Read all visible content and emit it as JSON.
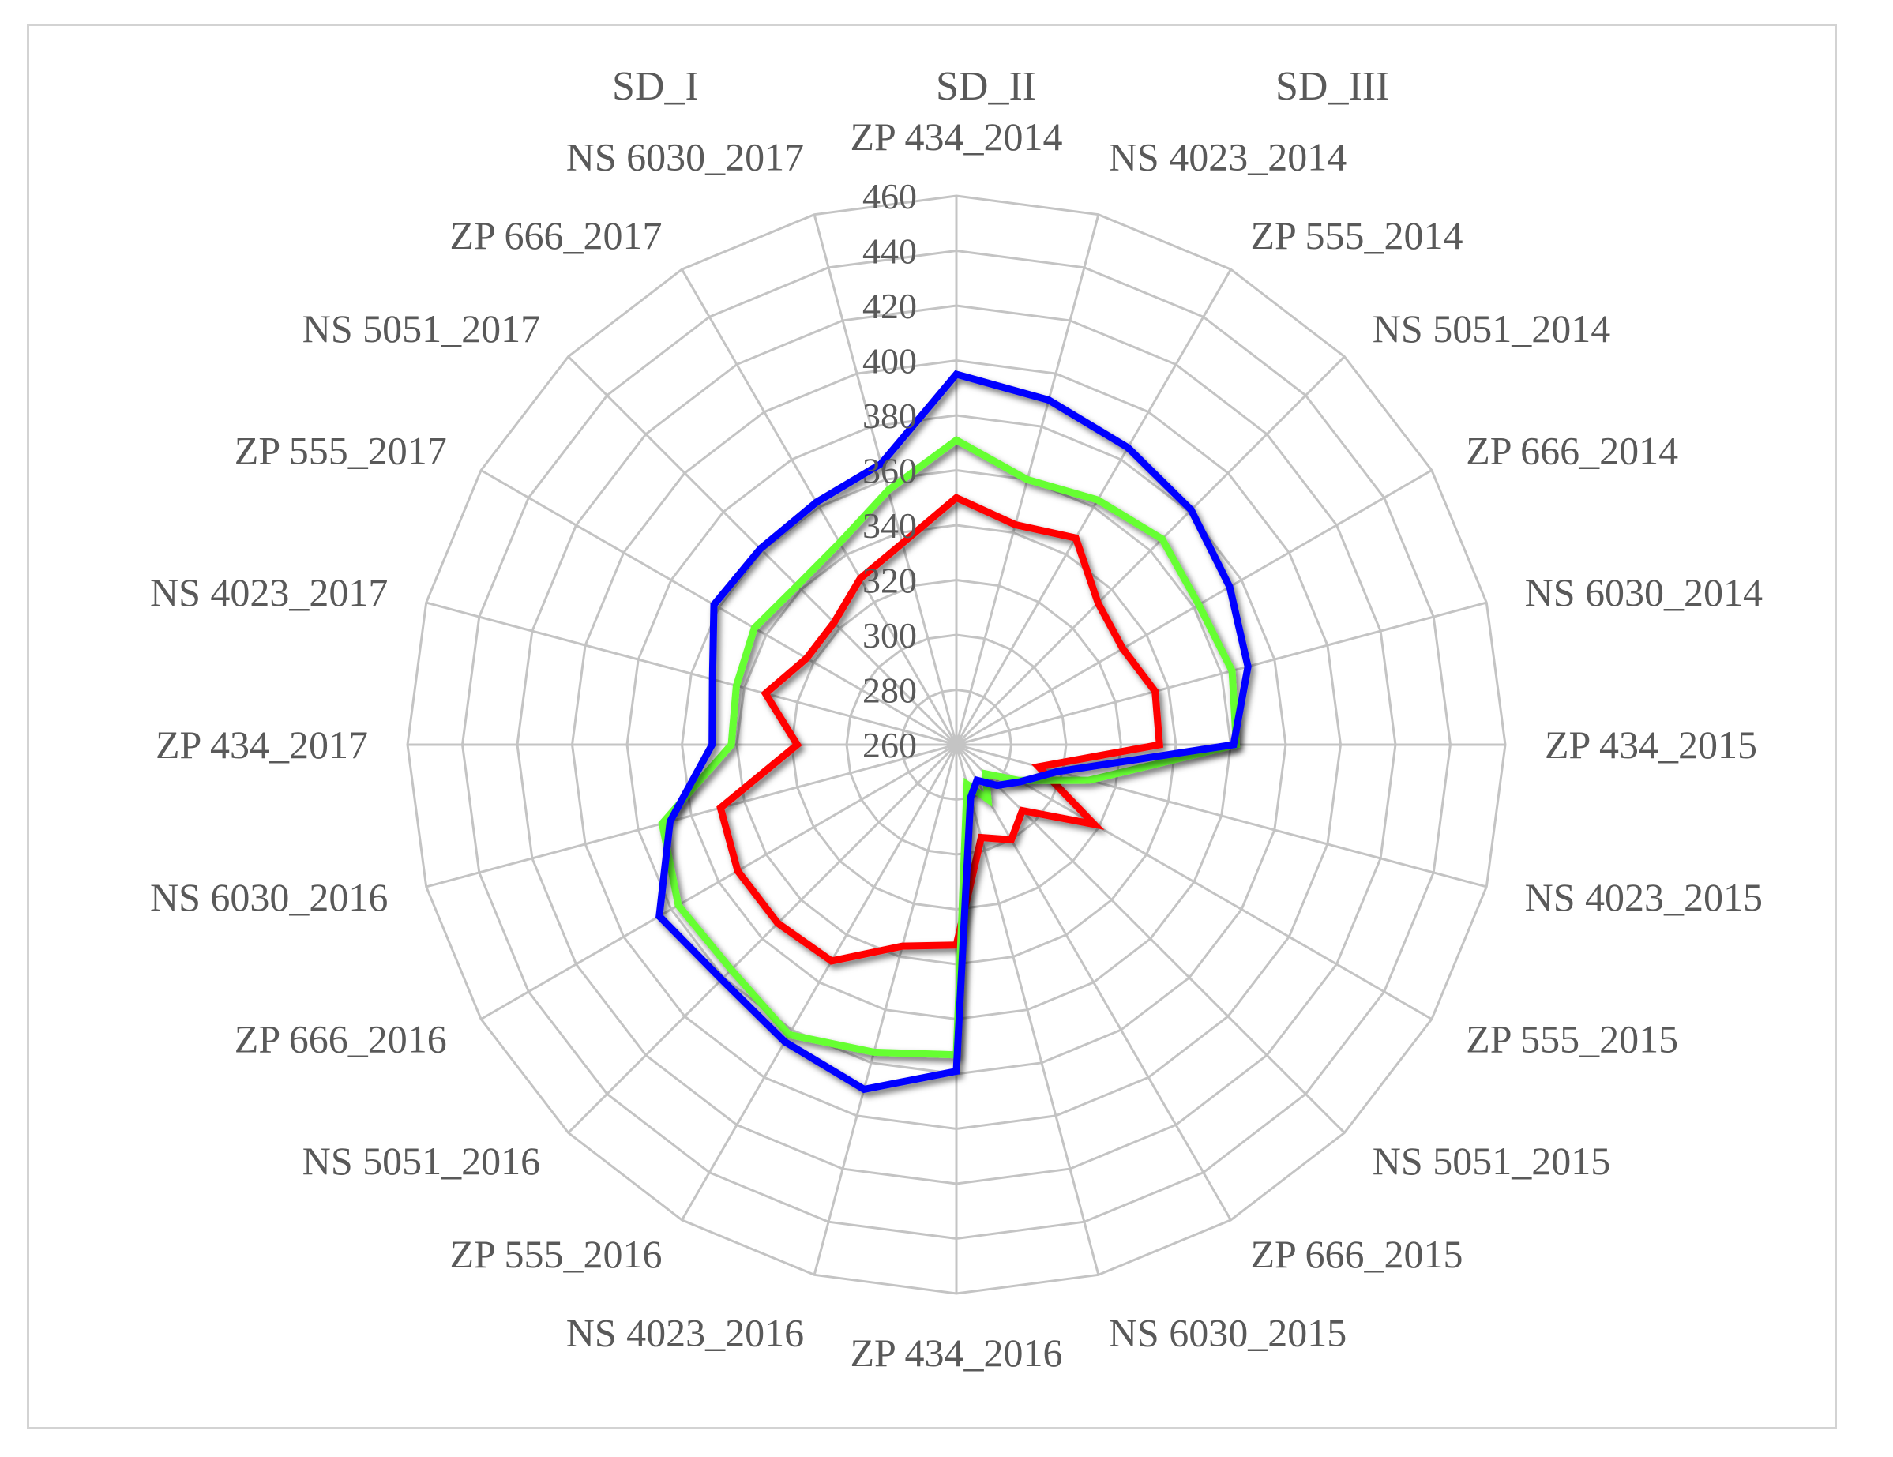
{
  "chart_data": {
    "type": "radar",
    "title": "",
    "categories": [
      "ZP 434_2014",
      "NS 4023_2014",
      "ZP 555_2014",
      "NS 5051_2014",
      "ZP 666_2014",
      "NS 6030_2014",
      "ZP 434_2015",
      "NS 4023_2015",
      "ZP 555_2015",
      "NS 5051_2015",
      "ZP 666_2015",
      "NS 6030_2015",
      "ZP 434_2016",
      "NS 4023_2016",
      "ZP 555_2016",
      "NS 5051_2016",
      "ZP 666_2016",
      "NS 6030_2016",
      "ZP 434_2017",
      "NS 4023_2017",
      "ZP 555_2017",
      "NS 5051_2017",
      "ZP 666_2017",
      "NS 6030_2017"
    ],
    "r_ticks": [
      260,
      280,
      300,
      320,
      340,
      360,
      380,
      400,
      420,
      440,
      460
    ],
    "r_range": [
      260,
      460
    ],
    "grid": true,
    "legend_position": "top",
    "series": [
      {
        "name": "SD_I",
        "color": "#ff0000",
        "values": [
          350,
          343,
          347,
          333,
          330,
          335,
          334,
          291,
          318,
          294,
          300,
          295,
          333,
          336,
          351,
          352,
          352,
          349,
          318,
          332,
          323,
          323,
          330,
          336
        ]
      },
      {
        "name": "SD_II",
        "color": "#66ff33",
        "values": [
          371,
          360,
          363,
          366,
          362,
          364,
          362,
          310,
          286,
          275,
          283,
          275,
          373,
          376,
          382,
          376,
          377,
          371,
          342,
          343,
          345,
          342,
          345,
          356
        ]
      },
      {
        "name": "SD_III",
        "color": "#0000ff",
        "values": [
          395,
          390,
          385,
          381,
          375,
          370,
          361,
          298,
          287,
          281,
          275,
          280,
          379,
          390,
          385,
          381,
          385,
          368,
          349,
          352,
          362,
          361,
          362,
          366
        ]
      }
    ]
  }
}
